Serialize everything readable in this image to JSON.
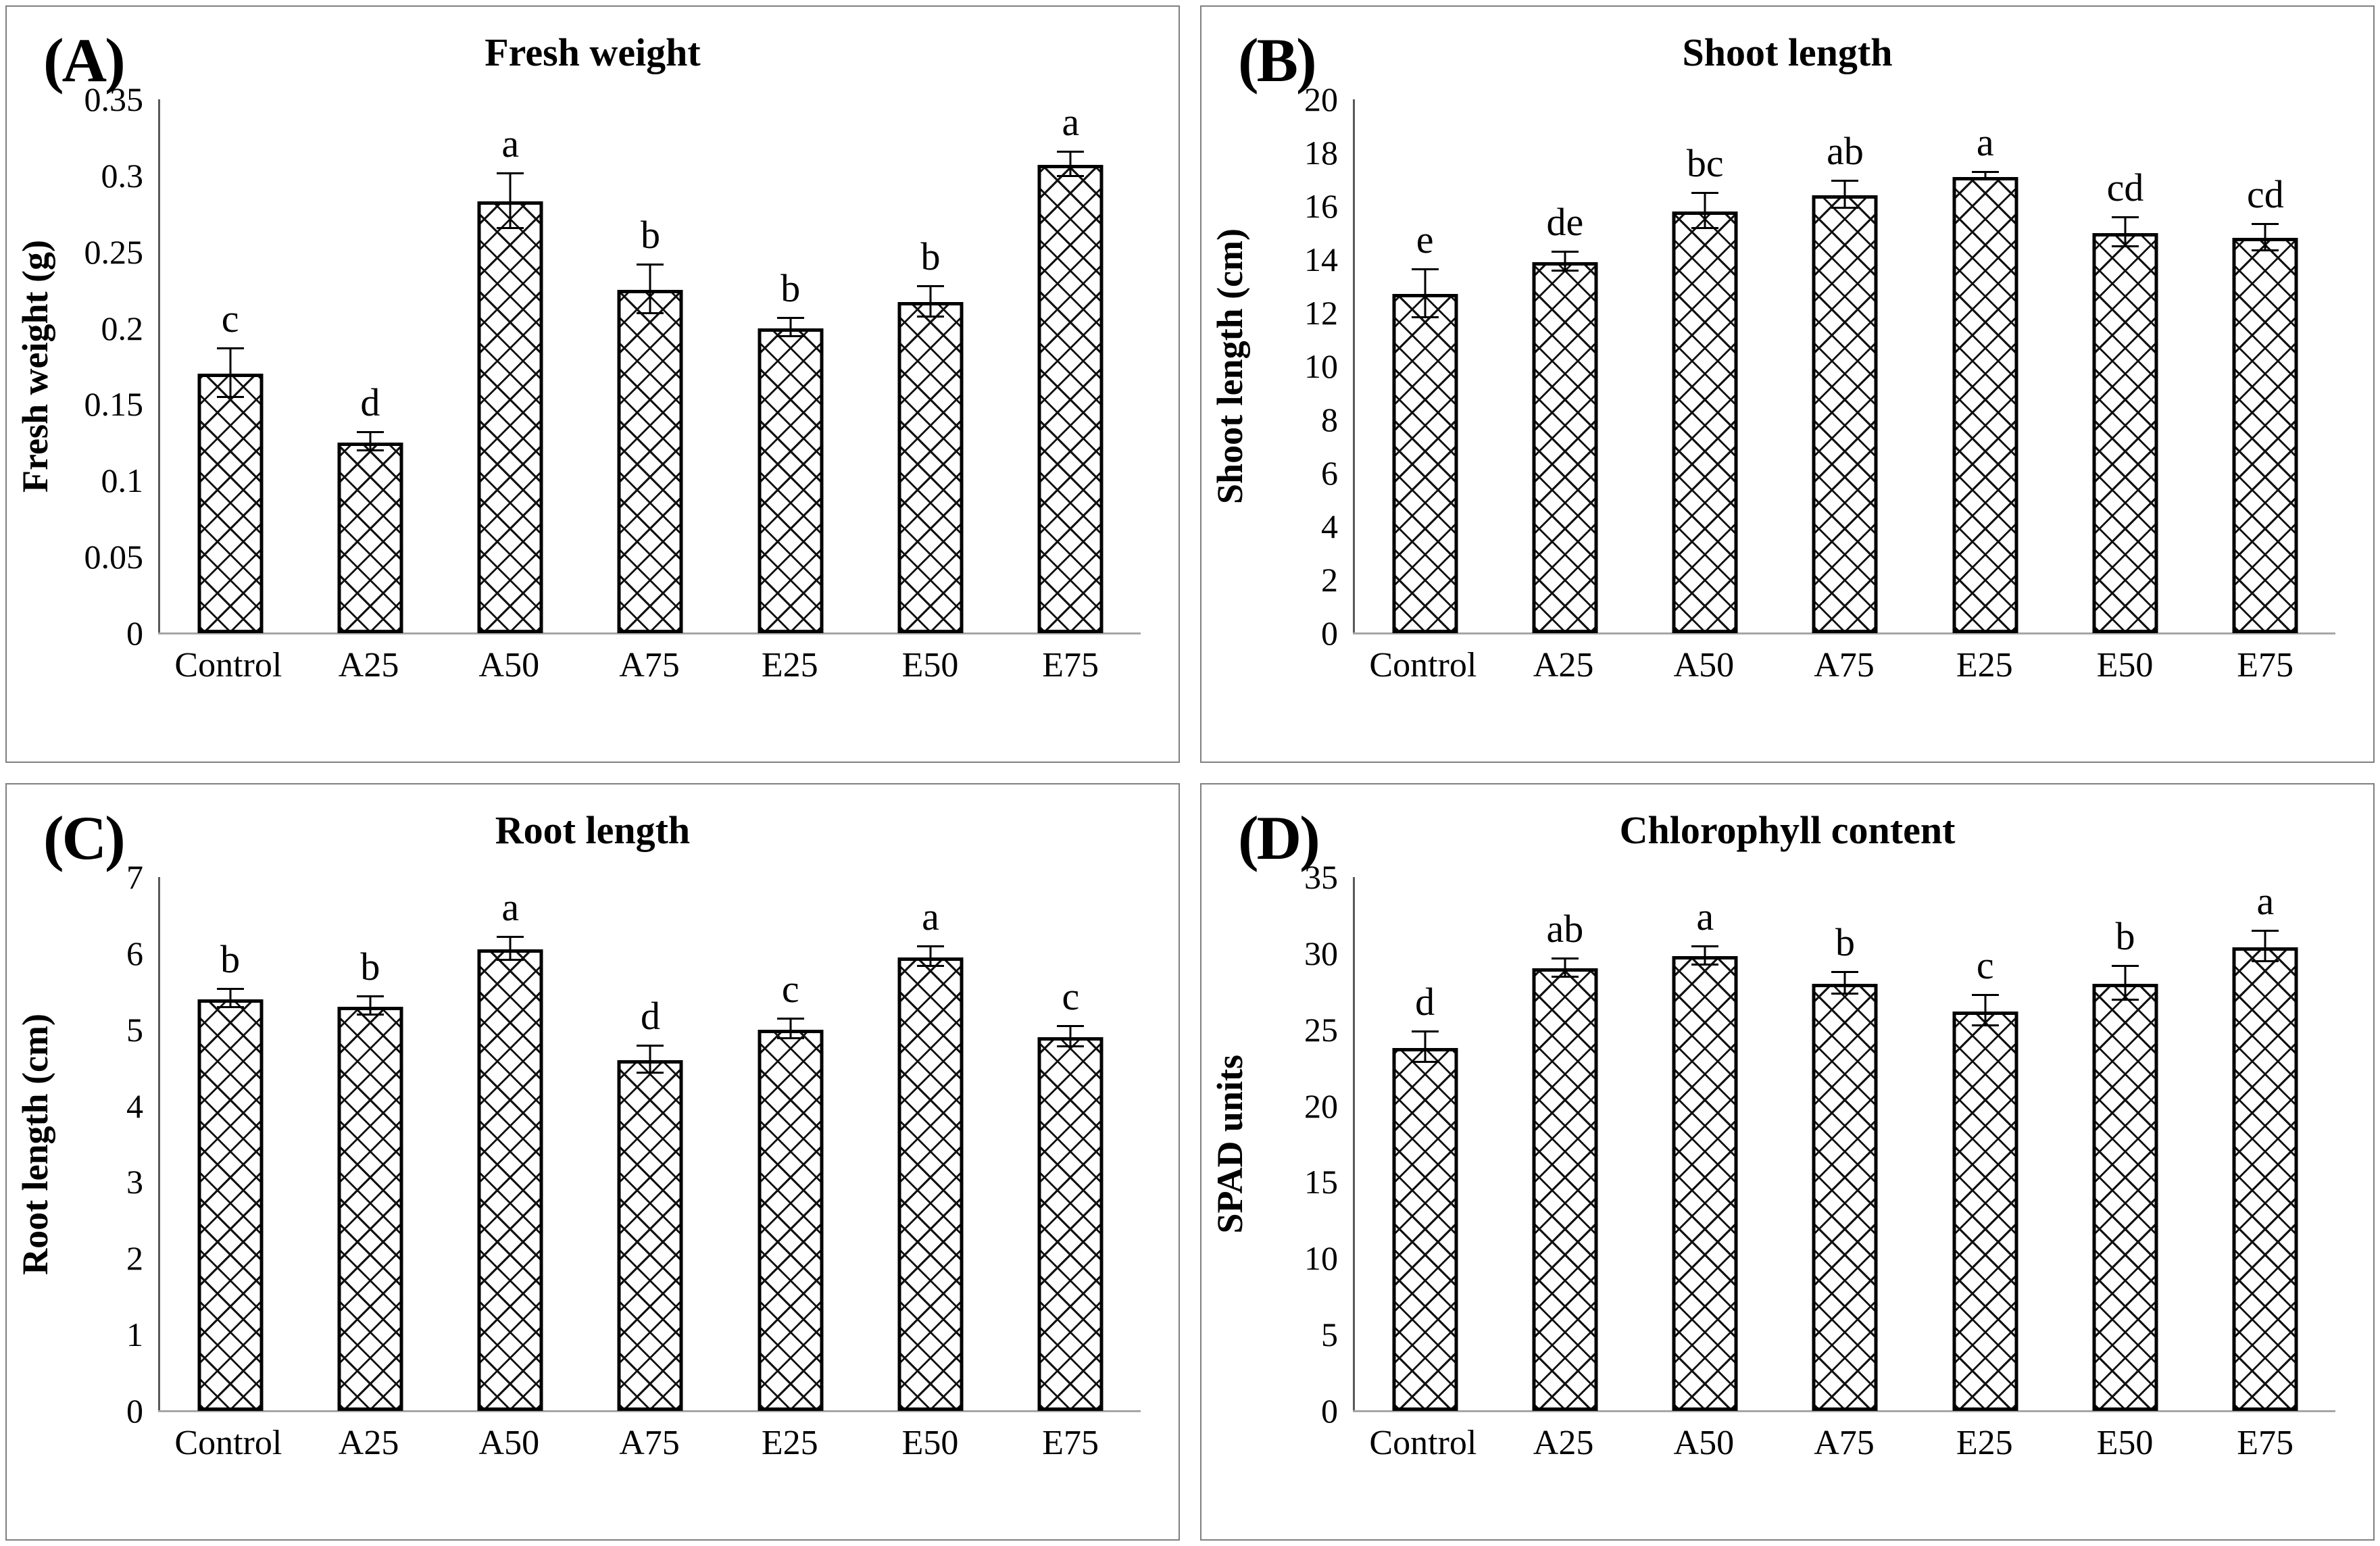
{
  "figure": {
    "kind": "four-panel bar chart figure",
    "background_color": "#ffffff",
    "panel_border_color": "#808080",
    "bar_fill": "white with black diagonal crosshatch pattern",
    "bar_outline_color": "#000000",
    "axis_line_color": "#595959",
    "baseline_color": "#a6a6a6",
    "text_color": "#000000"
  },
  "chart_data": [
    {
      "type": "bar",
      "panel_letter": "(A)",
      "title": "Fresh weight",
      "xlabel": "",
      "ylabel": "Fresh weight (g)",
      "ylim": [
        0,
        0.35
      ],
      "grid": false,
      "legend": null,
      "tick_labels": [
        "0",
        "0.05",
        "0.1",
        "0.15",
        "0.2",
        "0.25",
        "0.3",
        "0.35"
      ],
      "categories": [
        "Control",
        "A25",
        "A50",
        "A75",
        "E25",
        "E50",
        "E75"
      ],
      "values": [
        0.17,
        0.125,
        0.283,
        0.225,
        0.2,
        0.217,
        0.307
      ],
      "errors": [
        0.016,
        0.006,
        0.018,
        0.016,
        0.006,
        0.01,
        0.008
      ],
      "sig_letters": [
        "c",
        "d",
        "a",
        "b",
        "b",
        "b",
        "a"
      ]
    },
    {
      "type": "bar",
      "panel_letter": "(B)",
      "title": "Shoot length",
      "xlabel": "",
      "ylabel": "Shoot length (cm)",
      "ylim": [
        0,
        20
      ],
      "grid": false,
      "legend": null,
      "tick_labels": [
        "0",
        "2",
        "4",
        "6",
        "8",
        "10",
        "12",
        "14",
        "16",
        "18",
        "20"
      ],
      "categories": [
        "Control",
        "A25",
        "A50",
        "A75",
        "E25",
        "E50",
        "E75"
      ],
      "values": [
        12.7,
        13.9,
        15.8,
        16.4,
        17.1,
        15.0,
        14.8
      ],
      "errors": [
        0.9,
        0.35,
        0.65,
        0.5,
        0.15,
        0.55,
        0.5
      ],
      "sig_letters": [
        "e",
        "de",
        "bc",
        "ab",
        "a",
        "cd",
        "cd"
      ]
    },
    {
      "type": "bar",
      "panel_letter": "(C)",
      "title": "Root length",
      "xlabel": "",
      "ylabel": "Root length (cm)",
      "ylim": [
        0,
        7
      ],
      "grid": false,
      "legend": null,
      "tick_labels": [
        "0",
        "1",
        "2",
        "3",
        "4",
        "5",
        "6",
        "7"
      ],
      "categories": [
        "Control",
        "A25",
        "A50",
        "A75",
        "E25",
        "E50",
        "E75"
      ],
      "values": [
        5.4,
        5.3,
        6.05,
        4.6,
        5.0,
        5.95,
        4.9
      ],
      "errors": [
        0.12,
        0.12,
        0.15,
        0.18,
        0.13,
        0.13,
        0.13
      ],
      "sig_letters": [
        "b",
        "b",
        "a",
        "d",
        "c",
        "a",
        "c"
      ]
    },
    {
      "type": "bar",
      "panel_letter": "(D)",
      "title": "Chlorophyll content",
      "xlabel": "",
      "ylabel": "SPAD units",
      "ylim": [
        0,
        35
      ],
      "grid": false,
      "legend": null,
      "tick_labels": [
        "0",
        "5",
        "10",
        "15",
        "20",
        "25",
        "30",
        "35"
      ],
      "categories": [
        "Control",
        "A25",
        "A50",
        "A75",
        "E25",
        "E50",
        "E75"
      ],
      "values": [
        23.8,
        29.0,
        29.8,
        28.0,
        26.2,
        28.0,
        30.4
      ],
      "errors": [
        1.0,
        0.6,
        0.6,
        0.7,
        1.0,
        1.1,
        1.0
      ],
      "sig_letters": [
        "d",
        "ab",
        "a",
        "b",
        "c",
        "b",
        "a"
      ]
    }
  ]
}
